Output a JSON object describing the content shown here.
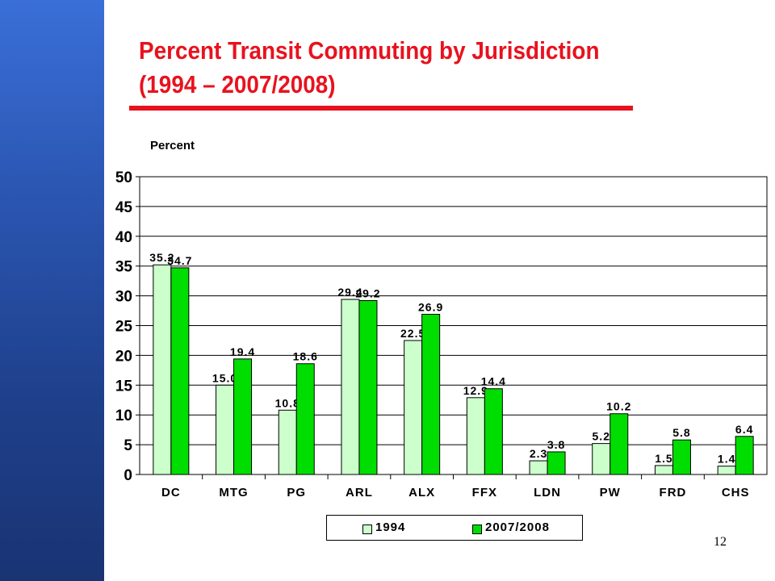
{
  "slide": {
    "title_line1": "Percent Transit Commuting by Jurisdiction",
    "title_line2": "(1994 – 2007/2008)",
    "page_number": "12",
    "colors": {
      "title": "#e8121e",
      "sidebar": "#2a55b0"
    }
  },
  "chart_data": {
    "type": "bar",
    "ylabel": "Percent",
    "xlabel": "",
    "ylim": [
      0,
      50
    ],
    "yticks": [
      0,
      5,
      10,
      15,
      20,
      25,
      30,
      35,
      40,
      45,
      50
    ],
    "grid": true,
    "legend_position": "bottom",
    "categories": [
      "DC",
      "MTG",
      "PG",
      "ARL",
      "ALX",
      "FFX",
      "LDN",
      "PW",
      "FRD",
      "CHS"
    ],
    "series": [
      {
        "name": "1994",
        "color": "#ccffcc",
        "values": [
          35.2,
          15.0,
          10.8,
          29.4,
          22.5,
          12.9,
          2.3,
          5.2,
          1.5,
          1.4
        ]
      },
      {
        "name": "2007/2008",
        "color": "#00dd00",
        "values": [
          34.7,
          19.4,
          18.6,
          29.2,
          26.9,
          14.4,
          3.8,
          10.2,
          5.8,
          6.4
        ]
      }
    ]
  }
}
